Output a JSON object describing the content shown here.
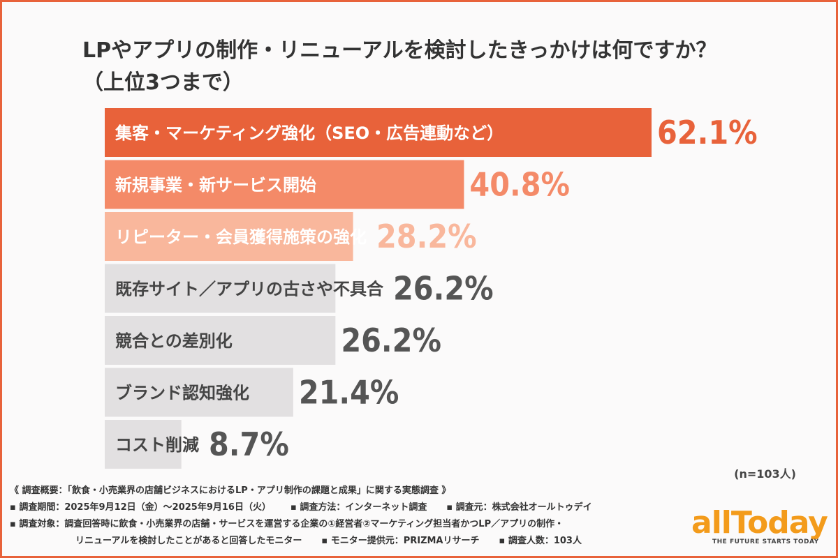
{
  "title": "LPやアプリの制作・リニューアルを検討したきっかけは何ですか？\n（上位3つまで）",
  "chart_data": {
    "type": "bar",
    "orientation": "horizontal",
    "categories": [
      "集客・マーケティング強化（SEO・広告連動など）",
      "新規事業・新サービス開始",
      "リピーター・会員獲得施策の強化",
      "既存サイト／アプリの古さや不具合",
      "競合との差別化",
      "ブランド認知強化",
      "コスト削減"
    ],
    "values": [
      62.1,
      40.8,
      28.2,
      26.2,
      26.2,
      21.4,
      8.7
    ],
    "value_labels": [
      "62.1%",
      "40.8%",
      "28.2%",
      "26.2%",
      "26.2%",
      "21.4%",
      "8.7%"
    ],
    "unit": "%",
    "xlim": [
      0,
      62.1
    ],
    "grid": false,
    "legend": "none",
    "colors": {
      "bar_1": "#e8623a",
      "bar_2": "#f48a68",
      "bar_3": "#f9b79c",
      "bar_other": "#e2e0e1",
      "value_1": "#e8623a",
      "value_2": "#f48a68",
      "value_3": "#f9b79c",
      "value_other": "#555555",
      "label_on_color": "#ffffff",
      "label_on_grey": "#444444"
    }
  },
  "sample_size": "(n=103人)",
  "notes": {
    "overview": "《 調査概要：「飲食・小売業界の店舗ビジネスにおけるLP・アプリ制作の課題と成果」に関する実態調査 》",
    "period": "▪ 調査期間：2025年9月12日（金）〜2025年9月16日（火）",
    "method": "▪ 調査方法：インターネット調査",
    "organizer": "▪ 調査元：株式会社オールトゥデイ",
    "target_1": "▪ 調査対象：調査回答時に飲食・小売業界の店舗・サービスを運営する企業の①経営者②マーケティング担当者かつLP／アプリの制作・",
    "target_2": "リニューアルを検討したことがあると回答したモニター",
    "provider": "▪ モニター提供元：PRIZMAリサーチ",
    "count": "▪ 調査人数：103人"
  },
  "logo": {
    "word": "allToday",
    "tagline": "THE FUTURE STARTS TODAY"
  }
}
